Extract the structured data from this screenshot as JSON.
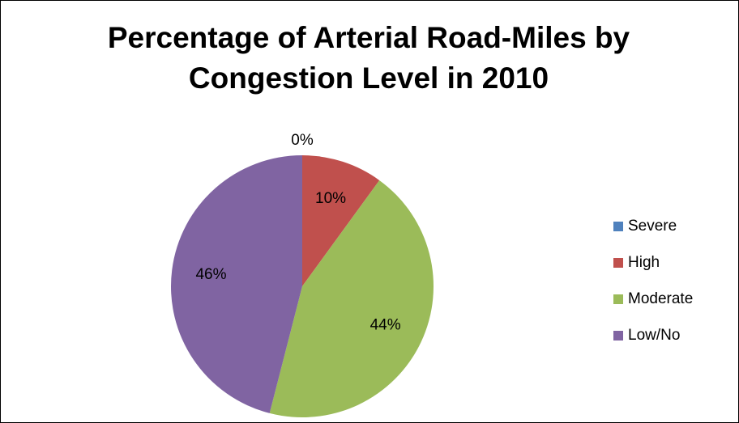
{
  "chart_data": {
    "type": "pie",
    "title": "Percentage of Arterial Road-Miles by Congestion Level in 2010",
    "categories": [
      "Severe",
      "High",
      "Moderate",
      "Low/No"
    ],
    "values": [
      0,
      10,
      44,
      46
    ],
    "value_labels": [
      "0%",
      "10%",
      "44%",
      "46%"
    ],
    "colors": [
      "#4f81bd",
      "#c0504d",
      "#9bbb59",
      "#8064a2"
    ],
    "legend": "right"
  }
}
